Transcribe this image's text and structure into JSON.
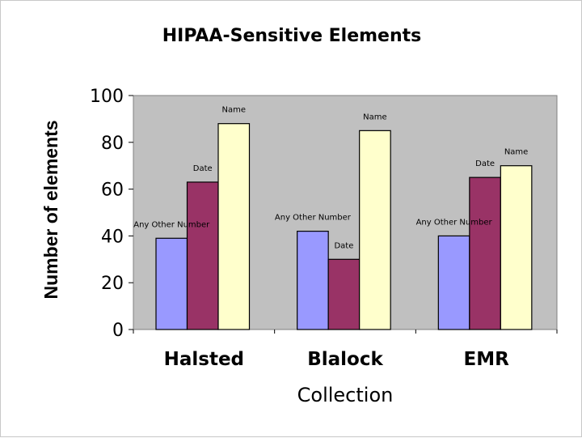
{
  "chart_data": {
    "type": "bar",
    "title": "HIPAA-Sensitive Elements",
    "xlabel": "Collection",
    "ylabel": "Number of elements",
    "categories": [
      "Halsted",
      "Blalock",
      "EMR"
    ],
    "series": [
      {
        "name": "Any Other Number",
        "values": [
          39,
          42,
          40
        ],
        "color": "#9999ff"
      },
      {
        "name": "Date",
        "values": [
          63,
          30,
          65
        ],
        "color": "#993366"
      },
      {
        "name": "Name",
        "values": [
          88,
          85,
          70
        ],
        "color": "#ffffcc"
      }
    ],
    "ylim": [
      0,
      100
    ],
    "yticks": [
      "0",
      "20",
      "40",
      "60",
      "80",
      "100"
    ],
    "grid": false,
    "plot_background": "#c0c0c0"
  }
}
